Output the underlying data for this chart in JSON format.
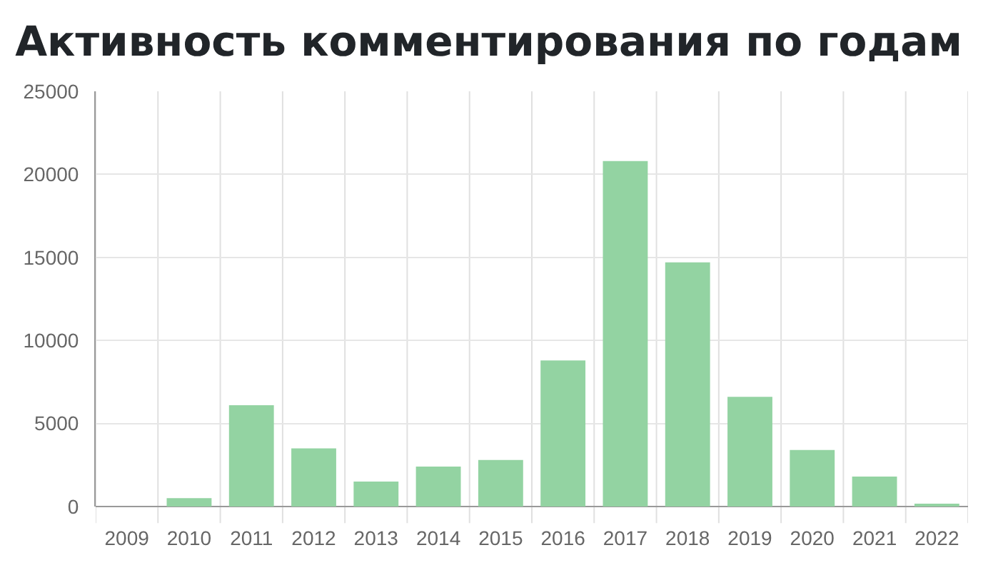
{
  "chart_data": {
    "type": "bar",
    "title": "Активность комментирования по годам",
    "categories": [
      "2009",
      "2010",
      "2011",
      "2012",
      "2013",
      "2014",
      "2015",
      "2016",
      "2017",
      "2018",
      "2019",
      "2020",
      "2021",
      "2022"
    ],
    "values": [
      0,
      500,
      6100,
      3500,
      1500,
      2400,
      2800,
      8800,
      20800,
      14700,
      6600,
      3400,
      1800,
      100
    ],
    "color": "#93d3a2",
    "ylim": [
      0,
      25000
    ],
    "yticks": [
      0,
      5000,
      10000,
      15000,
      20000,
      25000
    ],
    "grid": true
  }
}
